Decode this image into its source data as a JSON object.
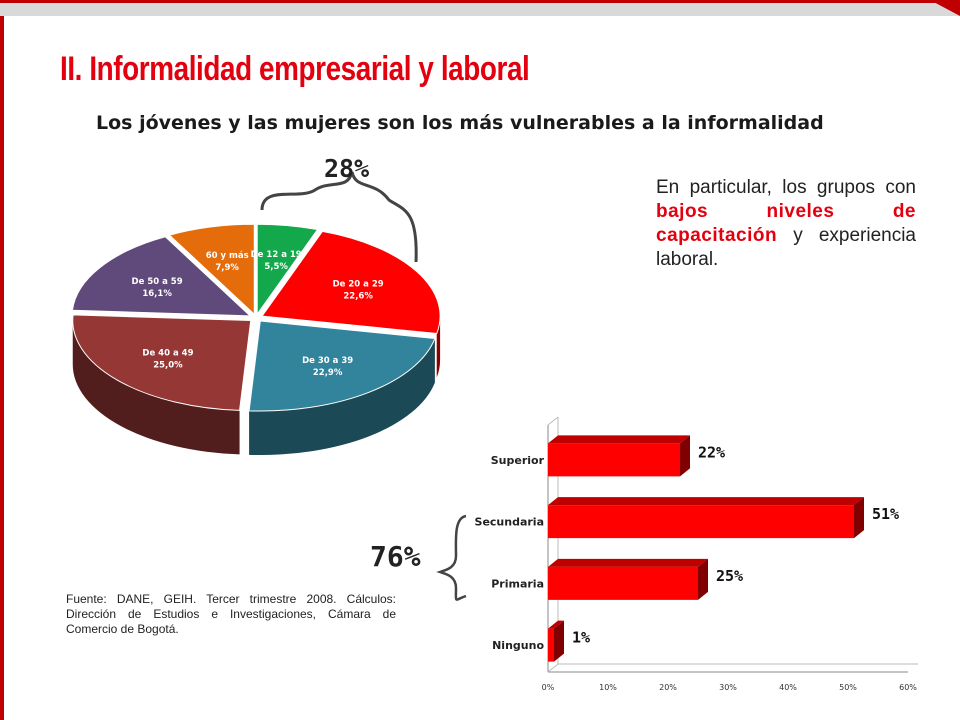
{
  "title": "II. Informalidad empresarial y laboral",
  "subtitle": "Los jóvenes y las mujeres son los más vulnerables a la informalidad",
  "annotations": {
    "pie_bracket": "28%",
    "bar_bracket": "76%"
  },
  "note": {
    "part1": "En particular, los grupos con ",
    "highlight": "bajos niveles de capacitación",
    "part2": " y experiencia laboral."
  },
  "source": "Fuente: DANE, GEIH. Tercer trimestre 2008. Cálculos: Dirección de Estudios e Investigaciones, Cámara de Comercio de Bogotá.",
  "colors": {
    "accent": "#e3000f",
    "stripe": "#c00000"
  },
  "chart_data": [
    {
      "type": "pie",
      "slices": [
        {
          "label": "De 12 a 19",
          "value": 5.5,
          "text": "5,5%",
          "color": "#13a84b"
        },
        {
          "label": "De 20 a 29",
          "value": 22.6,
          "text": "22,6%",
          "color": "#ff0000"
        },
        {
          "label": "De 30 a 39",
          "value": 22.9,
          "text": "22,9%",
          "color": "#31849b"
        },
        {
          "label": "De 40 a 49",
          "value": 25.0,
          "text": "25,0%",
          "color": "#953735"
        },
        {
          "label": "De 50 a 59",
          "value": 16.1,
          "text": "16,1%",
          "color": "#604a7b"
        },
        {
          "label": "60 y más",
          "value": 7.9,
          "text": "7,9%",
          "color": "#e46c0a"
        }
      ]
    },
    {
      "type": "bar",
      "orientation": "horizontal",
      "categories": [
        "Superior",
        "Secundaria",
        "Primaria",
        "Ninguno"
      ],
      "values": [
        22,
        51,
        25,
        1
      ],
      "value_labels": [
        "22%",
        "51%",
        "25%",
        "1%"
      ],
      "xlim": [
        0,
        60
      ],
      "xticks": [
        "0%",
        "10%",
        "20%",
        "30%",
        "40%",
        "50%",
        "60%"
      ],
      "color": "#ff0000"
    }
  ]
}
